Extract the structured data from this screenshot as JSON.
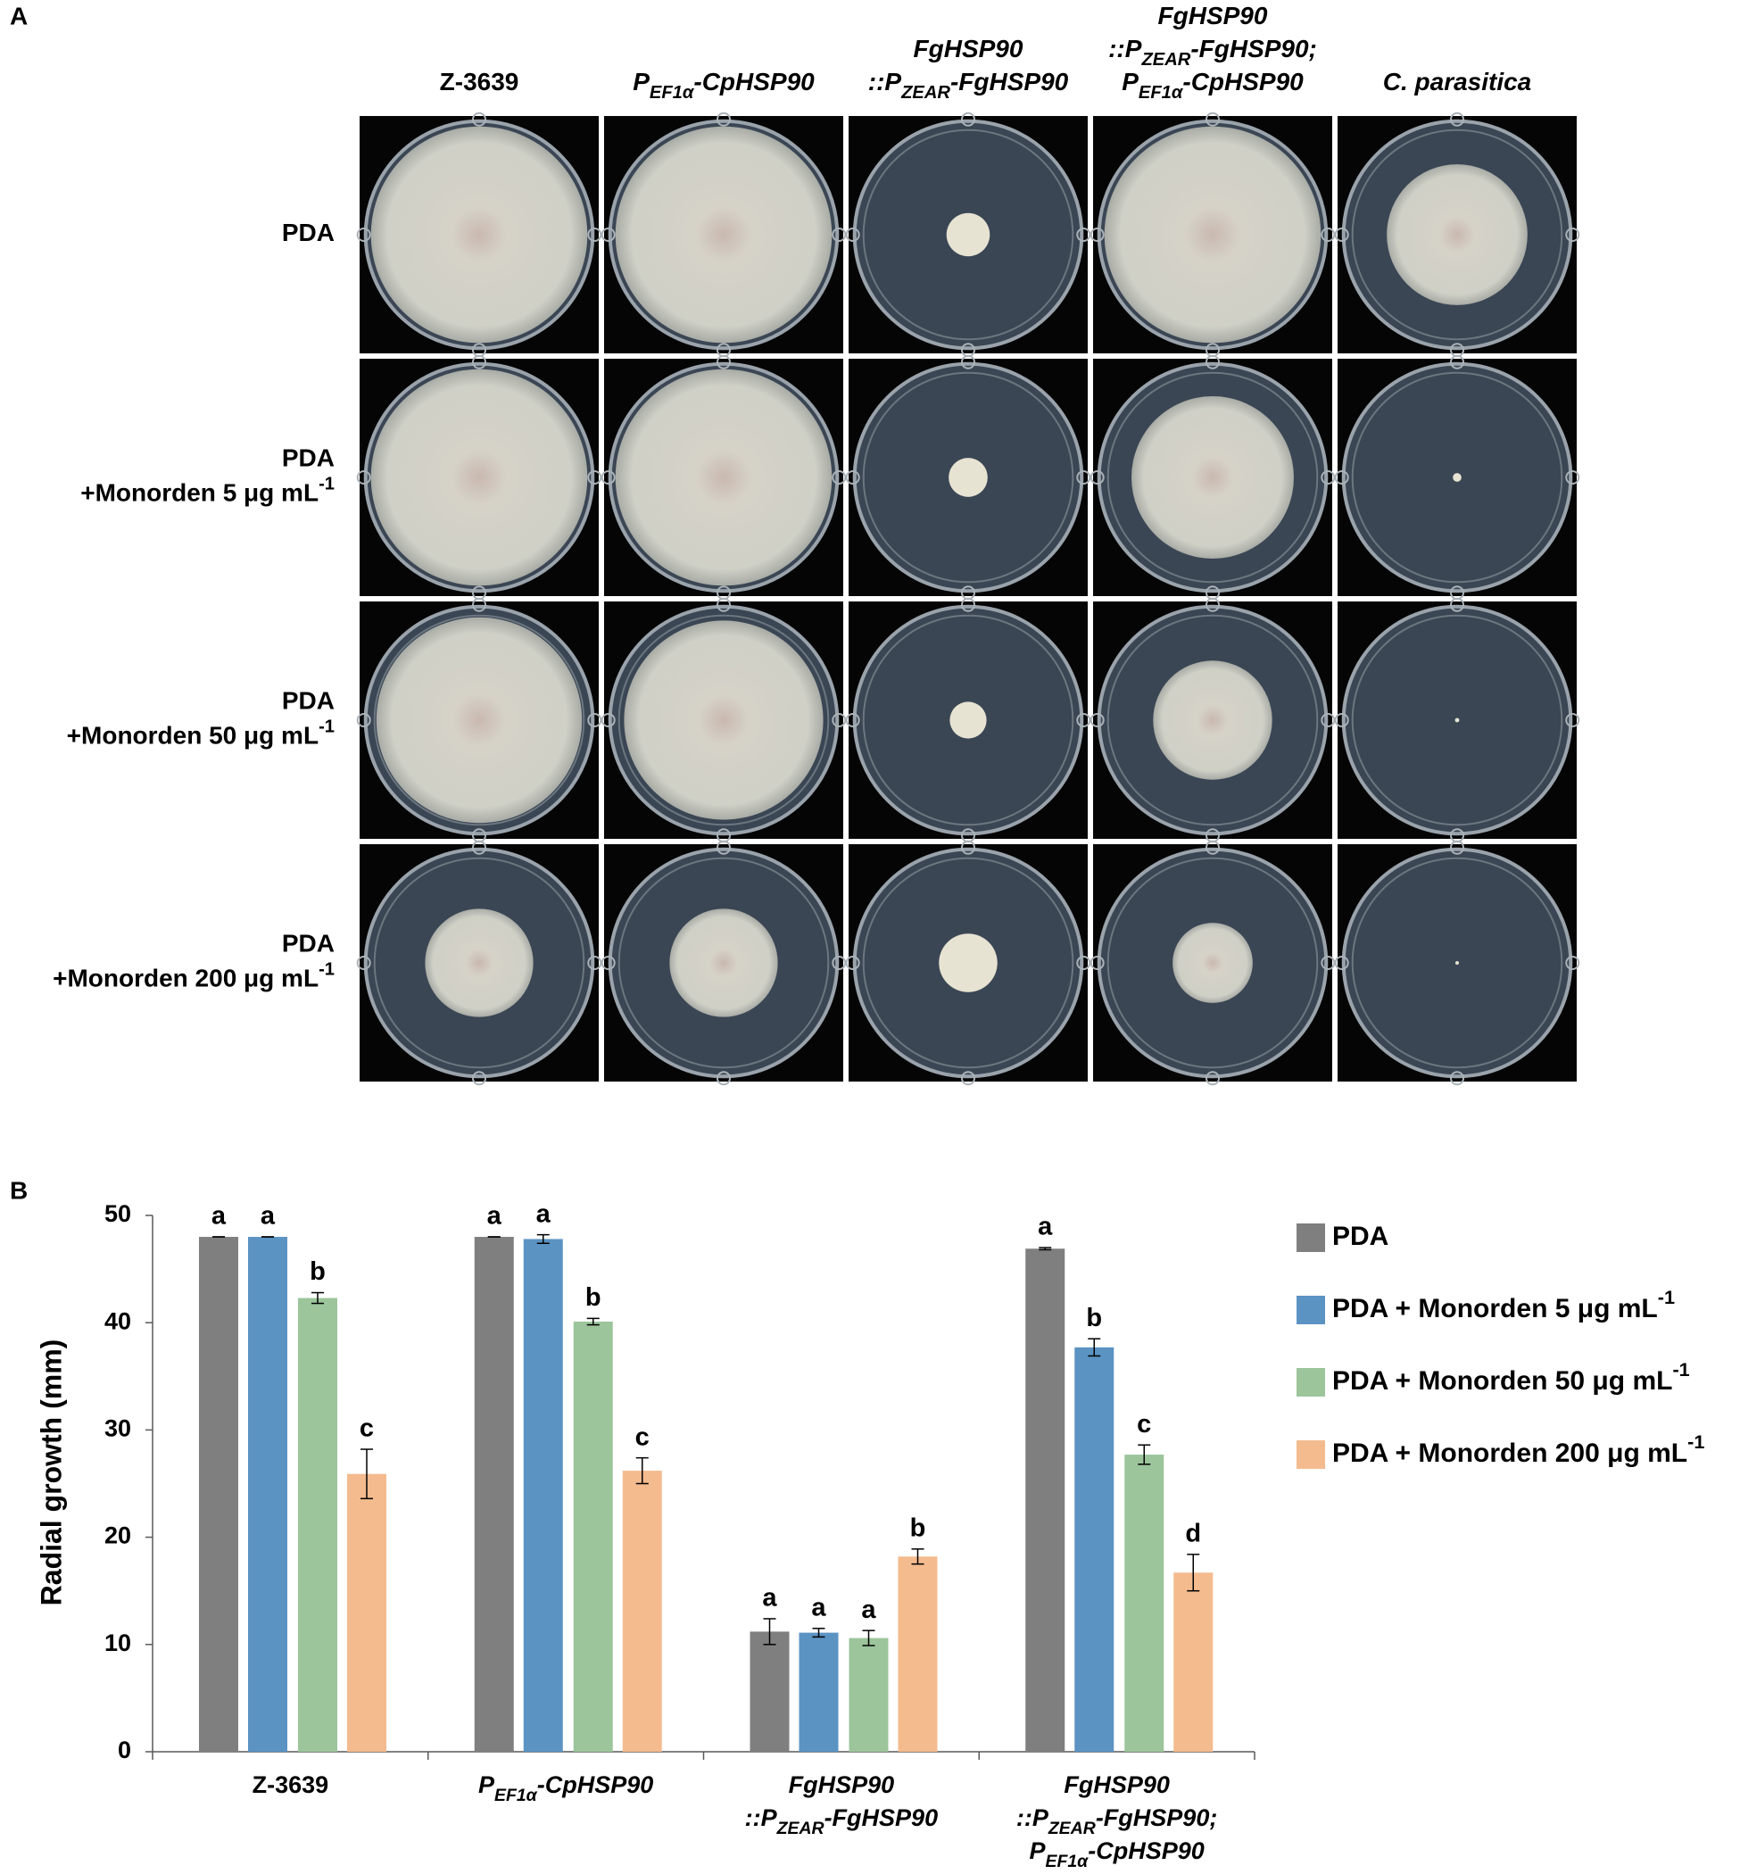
{
  "panel_a": {
    "label": "A",
    "columns": [
      {
        "italic": false,
        "lines": [
          [
            {
              "t": "Z-3639"
            }
          ]
        ]
      },
      {
        "italic": true,
        "lines": [
          [
            {
              "t": "P"
            },
            {
              "t": "EF1α",
              "sub": true
            },
            {
              "t": "-CpHSP90"
            }
          ]
        ]
      },
      {
        "italic": true,
        "lines": [
          [
            {
              "t": "FgHSP90"
            }
          ],
          [
            {
              "t": "::P"
            },
            {
              "t": "ZEAR",
              "sub": true
            },
            {
              "t": "-FgHSP90"
            }
          ]
        ]
      },
      {
        "italic": true,
        "lines": [
          [
            {
              "t": "FgHSP90"
            }
          ],
          [
            {
              "t": "::P"
            },
            {
              "t": "ZEAR",
              "sub": true
            },
            {
              "t": "-FgHSP90;"
            }
          ],
          [
            {
              "t": "P"
            },
            {
              "t": "EF1α",
              "sub": true
            },
            {
              "t": "-CpHSP90"
            }
          ]
        ]
      },
      {
        "italic": true,
        "lines": [
          [
            {
              "t": "C. parasitica"
            }
          ]
        ]
      }
    ],
    "rows": [
      {
        "italic": false,
        "lines": [
          [
            {
              "t": "PDA"
            }
          ]
        ]
      },
      {
        "italic": false,
        "lines": [
          [
            {
              "t": "PDA"
            }
          ],
          [
            {
              "t": "+Monorden 5 μg mL"
            },
            {
              "t": "-1",
              "sup": true
            }
          ]
        ]
      },
      {
        "italic": false,
        "lines": [
          [
            {
              "t": "PDA"
            }
          ],
          [
            {
              "t": "+Monorden 50 μg mL"
            },
            {
              "t": "-1",
              "sup": true
            }
          ]
        ]
      },
      {
        "italic": false,
        "lines": [
          [
            {
              "t": "PDA"
            }
          ],
          [
            {
              "t": "+Monorden 200 μg mL"
            },
            {
              "t": "-1",
              "sup": true
            }
          ]
        ]
      }
    ]
  },
  "chart_data": {
    "panel_label": "B",
    "type": "bar",
    "ylabel": "Radial growth (mm)",
    "ylim": [
      0,
      50
    ],
    "yticks": [
      0,
      10,
      20,
      30,
      40,
      50
    ],
    "grid": false,
    "legend": "right",
    "categories": [
      {
        "italic": false,
        "lines": [
          [
            {
              "t": "Z-3639"
            }
          ]
        ]
      },
      {
        "italic": true,
        "lines": [
          [
            {
              "t": "P"
            },
            {
              "t": "EF1α",
              "sub": true
            },
            {
              "t": "-CpHSP90"
            }
          ]
        ]
      },
      {
        "italic": true,
        "lines": [
          [
            {
              "t": "FgHSP90"
            }
          ],
          [
            {
              "t": "::P"
            },
            {
              "t": "ZEAR",
              "sub": true
            },
            {
              "t": "-FgHSP90"
            }
          ]
        ]
      },
      {
        "italic": true,
        "lines": [
          [
            {
              "t": "FgHSP90"
            }
          ],
          [
            {
              "t": "::P"
            },
            {
              "t": "ZEAR",
              "sub": true
            },
            {
              "t": "-FgHSP90;"
            }
          ],
          [
            {
              "t": "P"
            },
            {
              "t": "EF1α",
              "sub": true
            },
            {
              "t": "-CpHSP90"
            }
          ]
        ]
      }
    ],
    "series": [
      {
        "name": [
          {
            "t": "PDA"
          }
        ],
        "color": "#7f7f7f",
        "values": [
          48,
          48,
          11.2,
          46.9
        ],
        "errors": [
          0,
          0,
          1.2,
          0.1
        ],
        "letters": [
          "a",
          "a",
          "a",
          "a"
        ]
      },
      {
        "name": [
          {
            "t": "PDA + Monorden 5 μg mL"
          },
          {
            "t": "-1",
            "sup": true
          }
        ],
        "color": "#5b93c3",
        "values": [
          48,
          47.8,
          11.1,
          37.7
        ],
        "errors": [
          0,
          0.4,
          0.4,
          0.8
        ],
        "letters": [
          "a",
          "a",
          "a",
          "b"
        ]
      },
      {
        "name": [
          {
            "t": "PDA + Monorden 50 μg mL"
          },
          {
            "t": "-1",
            "sup": true
          }
        ],
        "color": "#9cc59c",
        "values": [
          42.3,
          40.1,
          10.6,
          27.7
        ],
        "errors": [
          0.5,
          0.3,
          0.7,
          0.9
        ],
        "letters": [
          "b",
          "b",
          "a",
          "c"
        ]
      },
      {
        "name": [
          {
            "t": "PDA + Monorden 200 μg mL"
          },
          {
            "t": "-1",
            "sup": true
          }
        ],
        "color": "#f4bb8f",
        "values": [
          25.9,
          26.2,
          18.2,
          16.7
        ],
        "errors": [
          2.3,
          1.2,
          0.7,
          1.7
        ],
        "letters": [
          "c",
          "c",
          "b",
          "d"
        ]
      }
    ]
  }
}
